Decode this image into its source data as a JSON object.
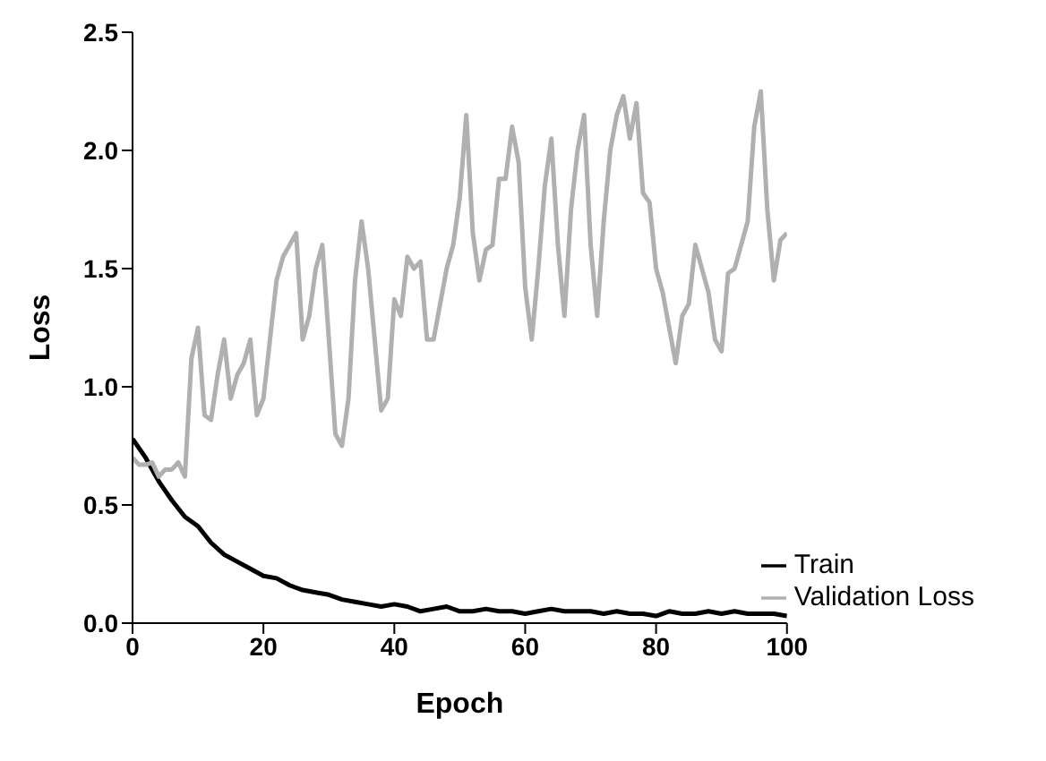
{
  "chart_data": {
    "type": "line",
    "xlabel": "Epoch",
    "ylabel": "Loss",
    "xlim": [
      0,
      100
    ],
    "xticks": [
      0,
      20,
      40,
      60,
      80,
      100
    ],
    "ylim": [
      0,
      2.5
    ],
    "yticks": [
      {
        "value": 0,
        "label": "0.0"
      },
      {
        "value": 0.5,
        "label": "0.5"
      },
      {
        "value": 1,
        "label": "1.0"
      },
      {
        "value": 1.5,
        "label": "1.5"
      },
      {
        "value": 2,
        "label": "2.0"
      },
      {
        "value": 2.5,
        "label": "2.5"
      }
    ],
    "grid": false,
    "legend": "bottom right",
    "marker": "none",
    "line_style": "solid",
    "series": [
      {
        "name": "Train",
        "color": "#000000",
        "x": [
          0,
          2,
          4,
          6,
          8,
          10,
          12,
          14,
          16,
          18,
          20,
          22,
          24,
          26,
          28,
          30,
          32,
          34,
          36,
          38,
          40,
          42,
          44,
          46,
          48,
          50,
          52,
          54,
          56,
          58,
          60,
          62,
          64,
          66,
          68,
          70,
          72,
          74,
          76,
          78,
          80,
          82,
          84,
          86,
          88,
          90,
          92,
          94,
          96,
          98,
          100
        ],
        "values": [
          0.78,
          0.7,
          0.6,
          0.52,
          0.45,
          0.41,
          0.34,
          0.29,
          0.26,
          0.23,
          0.2,
          0.19,
          0.16,
          0.14,
          0.13,
          0.12,
          0.1,
          0.09,
          0.08,
          0.07,
          0.08,
          0.07,
          0.05,
          0.06,
          0.07,
          0.05,
          0.05,
          0.06,
          0.05,
          0.05,
          0.04,
          0.05,
          0.06,
          0.05,
          0.05,
          0.05,
          0.04,
          0.05,
          0.04,
          0.04,
          0.03,
          0.05,
          0.04,
          0.04,
          0.05,
          0.04,
          0.05,
          0.04,
          0.04,
          0.04,
          0.03
        ]
      },
      {
        "name": "Validation Loss",
        "color": "#b0b0b0",
        "x": [
          0,
          1,
          2,
          3,
          4,
          5,
          6,
          7,
          8,
          9,
          10,
          11,
          12,
          13,
          14,
          15,
          16,
          17,
          18,
          19,
          20,
          21,
          22,
          23,
          24,
          25,
          26,
          27,
          28,
          29,
          30,
          31,
          32,
          33,
          34,
          35,
          36,
          37,
          38,
          39,
          40,
          41,
          42,
          43,
          44,
          45,
          46,
          47,
          48,
          49,
          50,
          51,
          52,
          53,
          54,
          55,
          56,
          57,
          58,
          59,
          60,
          61,
          62,
          63,
          64,
          65,
          66,
          67,
          68,
          69,
          70,
          71,
          72,
          73,
          74,
          75,
          76,
          77,
          78,
          79,
          80,
          81,
          82,
          83,
          84,
          85,
          86,
          87,
          88,
          89,
          90,
          91,
          92,
          93,
          94,
          95,
          96,
          97,
          98,
          99,
          100
        ],
        "values": [
          0.7,
          0.67,
          0.67,
          0.68,
          0.62,
          0.65,
          0.65,
          0.68,
          0.62,
          1.12,
          1.25,
          0.88,
          0.86,
          1.05,
          1.2,
          0.95,
          1.05,
          1.1,
          1.2,
          0.88,
          0.95,
          1.2,
          1.45,
          1.55,
          1.6,
          1.65,
          1.2,
          1.3,
          1.5,
          1.6,
          1.2,
          0.8,
          0.75,
          0.95,
          1.45,
          1.7,
          1.5,
          1.2,
          0.9,
          0.95,
          1.37,
          1.3,
          1.55,
          1.5,
          1.53,
          1.2,
          1.2,
          1.35,
          1.5,
          1.6,
          1.8,
          2.15,
          1.65,
          1.45,
          1.58,
          1.6,
          1.88,
          1.88,
          2.1,
          1.95,
          1.42,
          1.2,
          1.5,
          1.85,
          2.05,
          1.6,
          1.3,
          1.75,
          2.0,
          2.15,
          1.6,
          1.3,
          1.7,
          2.0,
          2.15,
          2.23,
          2.05,
          2.2,
          1.82,
          1.78,
          1.5,
          1.4,
          1.25,
          1.1,
          1.3,
          1.35,
          1.6,
          1.5,
          1.4,
          1.2,
          1.15,
          1.48,
          1.5,
          1.6,
          1.7,
          2.1,
          2.25,
          1.75,
          1.45,
          1.62,
          1.65
        ]
      }
    ]
  }
}
